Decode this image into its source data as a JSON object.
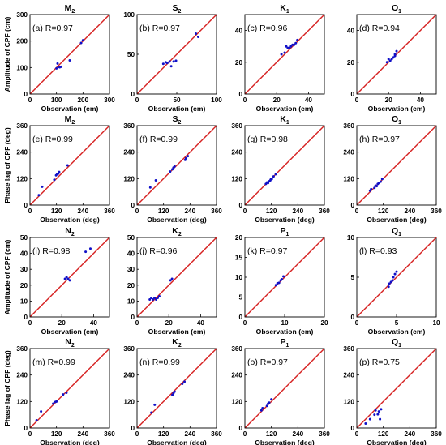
{
  "colors": {
    "line": "#d62020",
    "points": "#1010c8",
    "frame": "#000000"
  },
  "chart_data": [
    {
      "type": "scatter",
      "title": "M",
      "title_sub": "2",
      "annotation": "(a) R=0.97",
      "xlabel": "Observation (cm)",
      "ylabel": "Amplitude of CPF (cm)",
      "xlim": [
        0,
        300
      ],
      "ylim": [
        0,
        300
      ],
      "xticks": [
        0,
        100,
        200,
        300
      ],
      "yticks": [
        0,
        100,
        200,
        300
      ],
      "reference_line": "y=x",
      "points": [
        [
          100,
          97
        ],
        [
          104,
          115
        ],
        [
          108,
          103
        ],
        [
          112,
          101
        ],
        [
          118,
          103
        ],
        [
          150,
          127
        ],
        [
          193,
          193
        ],
        [
          200,
          203
        ]
      ]
    },
    {
      "type": "scatter",
      "title": "S",
      "title_sub": "2",
      "annotation": "(b) R=0.97",
      "xlabel": "Observation (cm)",
      "ylabel": "",
      "xlim": [
        0,
        100
      ],
      "ylim": [
        0,
        100
      ],
      "xticks": [
        0,
        50,
        100
      ],
      "yticks": [
        0,
        50,
        100
      ],
      "reference_line": "y=x",
      "points": [
        [
          33,
          38
        ],
        [
          36,
          40
        ],
        [
          38,
          39
        ],
        [
          41,
          41
        ],
        [
          43,
          35
        ],
        [
          46,
          41
        ],
        [
          49,
          42
        ],
        [
          74,
          76
        ],
        [
          77,
          72
        ]
      ]
    },
    {
      "type": "scatter",
      "title": "K",
      "title_sub": "1",
      "annotation": "(c) R=0.96",
      "xlabel": "Observation (cm)",
      "ylabel": "",
      "xlim": [
        0,
        50
      ],
      "ylim": [
        0,
        50
      ],
      "xticks": [
        0,
        20,
        40
      ],
      "yticks": [
        0,
        20,
        40
      ],
      "reference_line": "y=x",
      "points": [
        [
          23,
          25
        ],
        [
          25,
          26
        ],
        [
          26,
          30
        ],
        [
          27,
          29
        ],
        [
          28,
          29
        ],
        [
          29,
          30
        ],
        [
          30,
          31
        ],
        [
          31,
          31
        ],
        [
          32,
          32
        ],
        [
          33,
          34
        ]
      ]
    },
    {
      "type": "scatter",
      "title": "O",
      "title_sub": "1",
      "annotation": "(d) R=0.94",
      "xlabel": "Observation (cm)",
      "ylabel": "",
      "xlim": [
        0,
        50
      ],
      "ylim": [
        0,
        50
      ],
      "xticks": [
        0,
        20,
        40
      ],
      "yticks": [
        0,
        20,
        40
      ],
      "reference_line": "y=x",
      "points": [
        [
          19,
          20
        ],
        [
          20,
          22
        ],
        [
          21,
          21
        ],
        [
          22,
          22
        ],
        [
          23,
          23
        ],
        [
          24,
          24
        ],
        [
          25,
          27
        ],
        [
          24,
          25
        ]
      ]
    },
    {
      "type": "scatter",
      "title": "M",
      "title_sub": "2",
      "annotation": "(e) R=0.99",
      "xlabel": "Observation (deg)",
      "ylabel": "Phase lag of CPF (deg)",
      "xlim": [
        0,
        360
      ],
      "ylim": [
        0,
        360
      ],
      "xticks": [
        0,
        120,
        240,
        360
      ],
      "yticks": [
        0,
        120,
        240,
        360
      ],
      "reference_line": "y=x",
      "points": [
        [
          55,
          83
        ],
        [
          110,
          115
        ],
        [
          118,
          135
        ],
        [
          123,
          140
        ],
        [
          128,
          143
        ],
        [
          132,
          150
        ],
        [
          170,
          180
        ],
        [
          40,
          45
        ]
      ]
    },
    {
      "type": "scatter",
      "title": "S",
      "title_sub": "2",
      "annotation": "(f) R=0.99",
      "xlabel": "Observation (deg)",
      "ylabel": "",
      "xlim": [
        0,
        360
      ],
      "ylim": [
        0,
        360
      ],
      "xticks": [
        0,
        120,
        240,
        360
      ],
      "yticks": [
        0,
        120,
        240,
        360
      ],
      "reference_line": "y=x",
      "points": [
        [
          60,
          80
        ],
        [
          85,
          112
        ],
        [
          150,
          152
        ],
        [
          160,
          162
        ],
        [
          165,
          170
        ],
        [
          170,
          175
        ],
        [
          218,
          205
        ],
        [
          222,
          212
        ],
        [
          230,
          222
        ]
      ]
    },
    {
      "type": "scatter",
      "title": "K",
      "title_sub": "1",
      "annotation": "(g) R=0.98",
      "xlabel": "Observation (deg)",
      "ylabel": "",
      "xlim": [
        0,
        360
      ],
      "ylim": [
        0,
        360
      ],
      "xticks": [
        0,
        120,
        240,
        360
      ],
      "yticks": [
        0,
        120,
        240,
        360
      ],
      "reference_line": "y=x",
      "points": [
        [
          95,
          96
        ],
        [
          100,
          103
        ],
        [
          105,
          100
        ],
        [
          110,
          108
        ],
        [
          115,
          112
        ],
        [
          118,
          118
        ],
        [
          122,
          118
        ],
        [
          130,
          130
        ],
        [
          140,
          140
        ]
      ]
    },
    {
      "type": "scatter",
      "title": "O",
      "title_sub": "1",
      "annotation": "(h) R=0.97",
      "xlabel": "Observation (deg)",
      "ylabel": "",
      "xlim": [
        0,
        360
      ],
      "ylim": [
        0,
        360
      ],
      "xticks": [
        0,
        120,
        240,
        360
      ],
      "yticks": [
        0,
        120,
        240,
        360
      ],
      "reference_line": "y=x",
      "points": [
        [
          60,
          65
        ],
        [
          65,
          72
        ],
        [
          80,
          78
        ],
        [
          85,
          88
        ],
        [
          90,
          86
        ],
        [
          95,
          96
        ],
        [
          100,
          100
        ],
        [
          108,
          106
        ],
        [
          115,
          118
        ]
      ]
    },
    {
      "type": "scatter",
      "title": "N",
      "title_sub": "2",
      "annotation": "(i) R=0.98",
      "xlabel": "Observation (cm)",
      "ylabel": "Amplitude of CPF (cm)",
      "xlim": [
        0,
        50
      ],
      "ylim": [
        0,
        50
      ],
      "xticks": [
        0,
        20,
        40
      ],
      "yticks": [
        0,
        10,
        20,
        30,
        40,
        50
      ],
      "reference_line": "y=x",
      "points": [
        [
          22,
          24
        ],
        [
          23,
          25
        ],
        [
          24,
          24
        ],
        [
          25,
          23
        ],
        [
          35,
          41
        ],
        [
          38,
          43
        ]
      ]
    },
    {
      "type": "scatter",
      "title": "K",
      "title_sub": "2",
      "annotation": "(j) R=0.96",
      "xlabel": "Observation (cm)",
      "ylabel": "",
      "xlim": [
        0,
        50
      ],
      "ylim": [
        0,
        50
      ],
      "xticks": [
        0,
        20,
        40
      ],
      "yticks": [
        0,
        10,
        20,
        30,
        40,
        50
      ],
      "reference_line": "y=x",
      "points": [
        [
          8,
          11
        ],
        [
          9,
          12
        ],
        [
          10,
          11
        ],
        [
          11,
          12
        ],
        [
          12,
          11
        ],
        [
          13,
          12
        ],
        [
          14,
          13
        ],
        [
          21,
          23
        ],
        [
          22,
          24
        ]
      ]
    },
    {
      "type": "scatter",
      "title": "P",
      "title_sub": "1",
      "annotation": "(k) R=0.97",
      "xlabel": "Observation (cm)",
      "ylabel": "",
      "xlim": [
        0,
        20
      ],
      "ylim": [
        0,
        20
      ],
      "xticks": [
        0,
        10,
        20
      ],
      "yticks": [
        0,
        5,
        10,
        15,
        20
      ],
      "reference_line": "y=x",
      "points": [
        [
          7.8,
          8
        ],
        [
          8.2,
          8.5
        ],
        [
          8.6,
          8.6
        ],
        [
          9,
          9.2
        ],
        [
          9.3,
          9.5
        ],
        [
          9.7,
          10.2
        ]
      ]
    },
    {
      "type": "scatter",
      "title": "Q",
      "title_sub": "1",
      "annotation": "(l) R=0.93",
      "xlabel": "Observation (cm)",
      "ylabel": "",
      "xlim": [
        0,
        10
      ],
      "ylim": [
        0,
        10
      ],
      "xticks": [
        0,
        5,
        10
      ],
      "yticks": [
        0,
        5,
        10
      ],
      "reference_line": "y=x",
      "points": [
        [
          4,
          3.8
        ],
        [
          4.1,
          4.2
        ],
        [
          4.3,
          4.4
        ],
        [
          4.5,
          4.6
        ],
        [
          4.6,
          5
        ],
        [
          4.8,
          5.4
        ],
        [
          5,
          5.7
        ]
      ]
    },
    {
      "type": "scatter",
      "title": "N",
      "title_sub": "2",
      "annotation": "(m) R=0.99",
      "xlabel": "Observation (deg)",
      "ylabel": "Phase lag of CPF (deg)",
      "xlim": [
        0,
        360
      ],
      "ylim": [
        0,
        360
      ],
      "xticks": [
        0,
        120,
        240,
        360
      ],
      "yticks": [
        0,
        120,
        240,
        360
      ],
      "reference_line": "y=x",
      "points": [
        [
          30,
          35
        ],
        [
          50,
          75
        ],
        [
          105,
          110
        ],
        [
          115,
          118
        ],
        [
          120,
          120
        ],
        [
          150,
          152
        ],
        [
          165,
          160
        ]
      ]
    },
    {
      "type": "scatter",
      "title": "K",
      "title_sub": "2",
      "annotation": "(n) R=0.99",
      "xlabel": "Observation (deg)",
      "ylabel": "",
      "xlim": [
        0,
        360
      ],
      "ylim": [
        0,
        360
      ],
      "xticks": [
        0,
        120,
        240,
        360
      ],
      "yticks": [
        0,
        120,
        240,
        360
      ],
      "reference_line": "y=x",
      "points": [
        [
          65,
          70
        ],
        [
          80,
          105
        ],
        [
          160,
          150
        ],
        [
          165,
          158
        ],
        [
          170,
          165
        ],
        [
          205,
          200
        ],
        [
          215,
          210
        ]
      ]
    },
    {
      "type": "scatter",
      "title": "P",
      "title_sub": "1",
      "annotation": "(o) R=0.97",
      "xlabel": "Observation (deg)",
      "ylabel": "",
      "xlim": [
        0,
        360
      ],
      "ylim": [
        0,
        360
      ],
      "xticks": [
        0,
        120,
        240,
        360
      ],
      "yticks": [
        0,
        120,
        240,
        360
      ],
      "reference_line": "y=x",
      "points": [
        [
          75,
          80
        ],
        [
          80,
          90
        ],
        [
          100,
          100
        ],
        [
          105,
          110
        ],
        [
          110,
          115
        ],
        [
          120,
          130
        ]
      ]
    },
    {
      "type": "scatter",
      "title": "Q",
      "title_sub": "1",
      "annotation": "(p) R=0.75",
      "xlabel": "Observation (deg)",
      "ylabel": "",
      "xlim": [
        0,
        360
      ],
      "ylim": [
        0,
        360
      ],
      "xticks": [
        0,
        120,
        240,
        360
      ],
      "yticks": [
        0,
        120,
        240,
        360
      ],
      "reference_line": "y=x",
      "points": [
        [
          40,
          20
        ],
        [
          60,
          40
        ],
        [
          80,
          60
        ],
        [
          85,
          80
        ],
        [
          95,
          62
        ],
        [
          100,
          75
        ],
        [
          110,
          85
        ],
        [
          105,
          40
        ]
      ]
    }
  ]
}
